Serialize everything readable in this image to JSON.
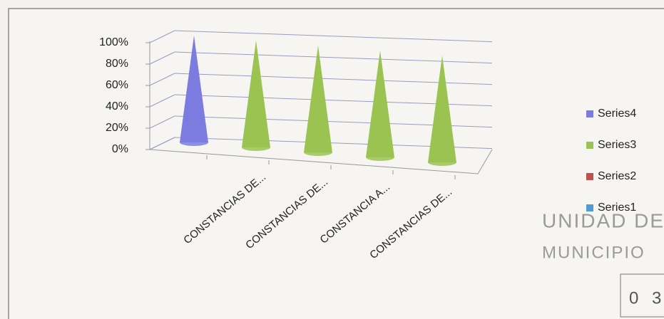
{
  "chart_data": {
    "type": "cone3d",
    "categories": [
      null,
      "CONSTANCIAS DE...",
      "CONSTANCIAS DE...",
      "CONSTANCIA A...",
      "CONSTANCIAS DE..."
    ],
    "series": [
      {
        "name": "Series4",
        "color": "#7b7be0",
        "values": [
          100,
          0,
          0,
          0,
          0
        ]
      },
      {
        "name": "Series3",
        "color": "#9bc352",
        "values": [
          0,
          100,
          100,
          100,
          100
        ]
      },
      {
        "name": "Series2",
        "color": "#c0504d",
        "values": [
          0,
          0,
          0,
          0,
          0
        ]
      },
      {
        "name": "Series1",
        "color": "#4f9bd5",
        "values": [
          0,
          0,
          0,
          0,
          0
        ]
      }
    ],
    "ylim": [
      0,
      100
    ],
    "yticks": [
      {
        "value": 0,
        "label": "0%"
      },
      {
        "value": 20,
        "label": "20%"
      },
      {
        "value": 40,
        "label": "40%"
      },
      {
        "value": 60,
        "label": "60%"
      },
      {
        "value": 80,
        "label": "80%"
      },
      {
        "value": 100,
        "label": "100%"
      }
    ],
    "grid": true,
    "legend": "right"
  },
  "stamp": {
    "lines": [
      "UNIDAD DE",
      "MUNICIPIO",
      "0 3"
    ]
  }
}
